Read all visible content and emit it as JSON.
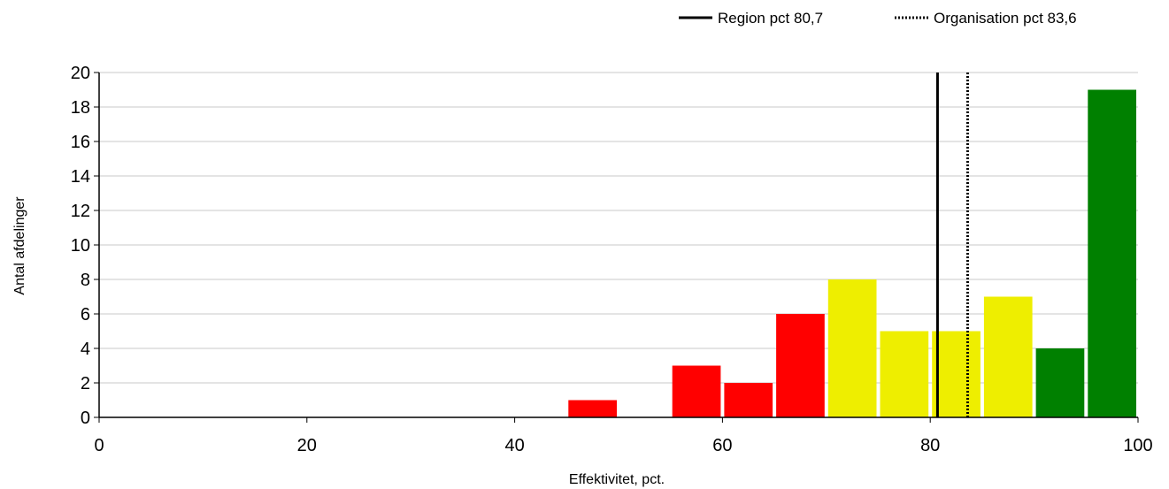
{
  "chart_data": {
    "type": "bar",
    "xlabel": "Effektivitet, pct.",
    "ylabel": "Antal afdelinger",
    "xlim": [
      0,
      100
    ],
    "ylim": [
      0,
      20
    ],
    "x_ticks": [
      "0",
      "20",
      "40",
      "60",
      "80",
      "100"
    ],
    "y_ticks": [
      "0",
      "2",
      "4",
      "6",
      "8",
      "10",
      "12",
      "14",
      "16",
      "18",
      "20"
    ],
    "grid": "horizontal",
    "legend_position": "top-right",
    "bin_width": 5,
    "bins": [
      {
        "x0": 45,
        "x1": 50,
        "value": 1,
        "color": "#ff0000"
      },
      {
        "x0": 55,
        "x1": 60,
        "value": 3,
        "color": "#ff0000"
      },
      {
        "x0": 60,
        "x1": 65,
        "value": 2,
        "color": "#ff0000"
      },
      {
        "x0": 65,
        "x1": 70,
        "value": 6,
        "color": "#ff0000"
      },
      {
        "x0": 70,
        "x1": 75,
        "value": 8,
        "color": "#eeee00"
      },
      {
        "x0": 75,
        "x1": 80,
        "value": 5,
        "color": "#eeee00"
      },
      {
        "x0": 80,
        "x1": 85,
        "value": 5,
        "color": "#eeee00"
      },
      {
        "x0": 85,
        "x1": 90,
        "value": 7,
        "color": "#eeee00"
      },
      {
        "x0": 90,
        "x1": 95,
        "value": 4,
        "color": "#008000"
      },
      {
        "x0": 95,
        "x1": 100,
        "value": 19,
        "color": "#008000"
      }
    ],
    "reference_lines": [
      {
        "label": "Region pct 80,7",
        "x": 80.7,
        "style": "solid",
        "color": "#000000"
      },
      {
        "label": "Organisation pct 83,6",
        "x": 83.6,
        "style": "dotted",
        "color": "#000000"
      }
    ]
  }
}
